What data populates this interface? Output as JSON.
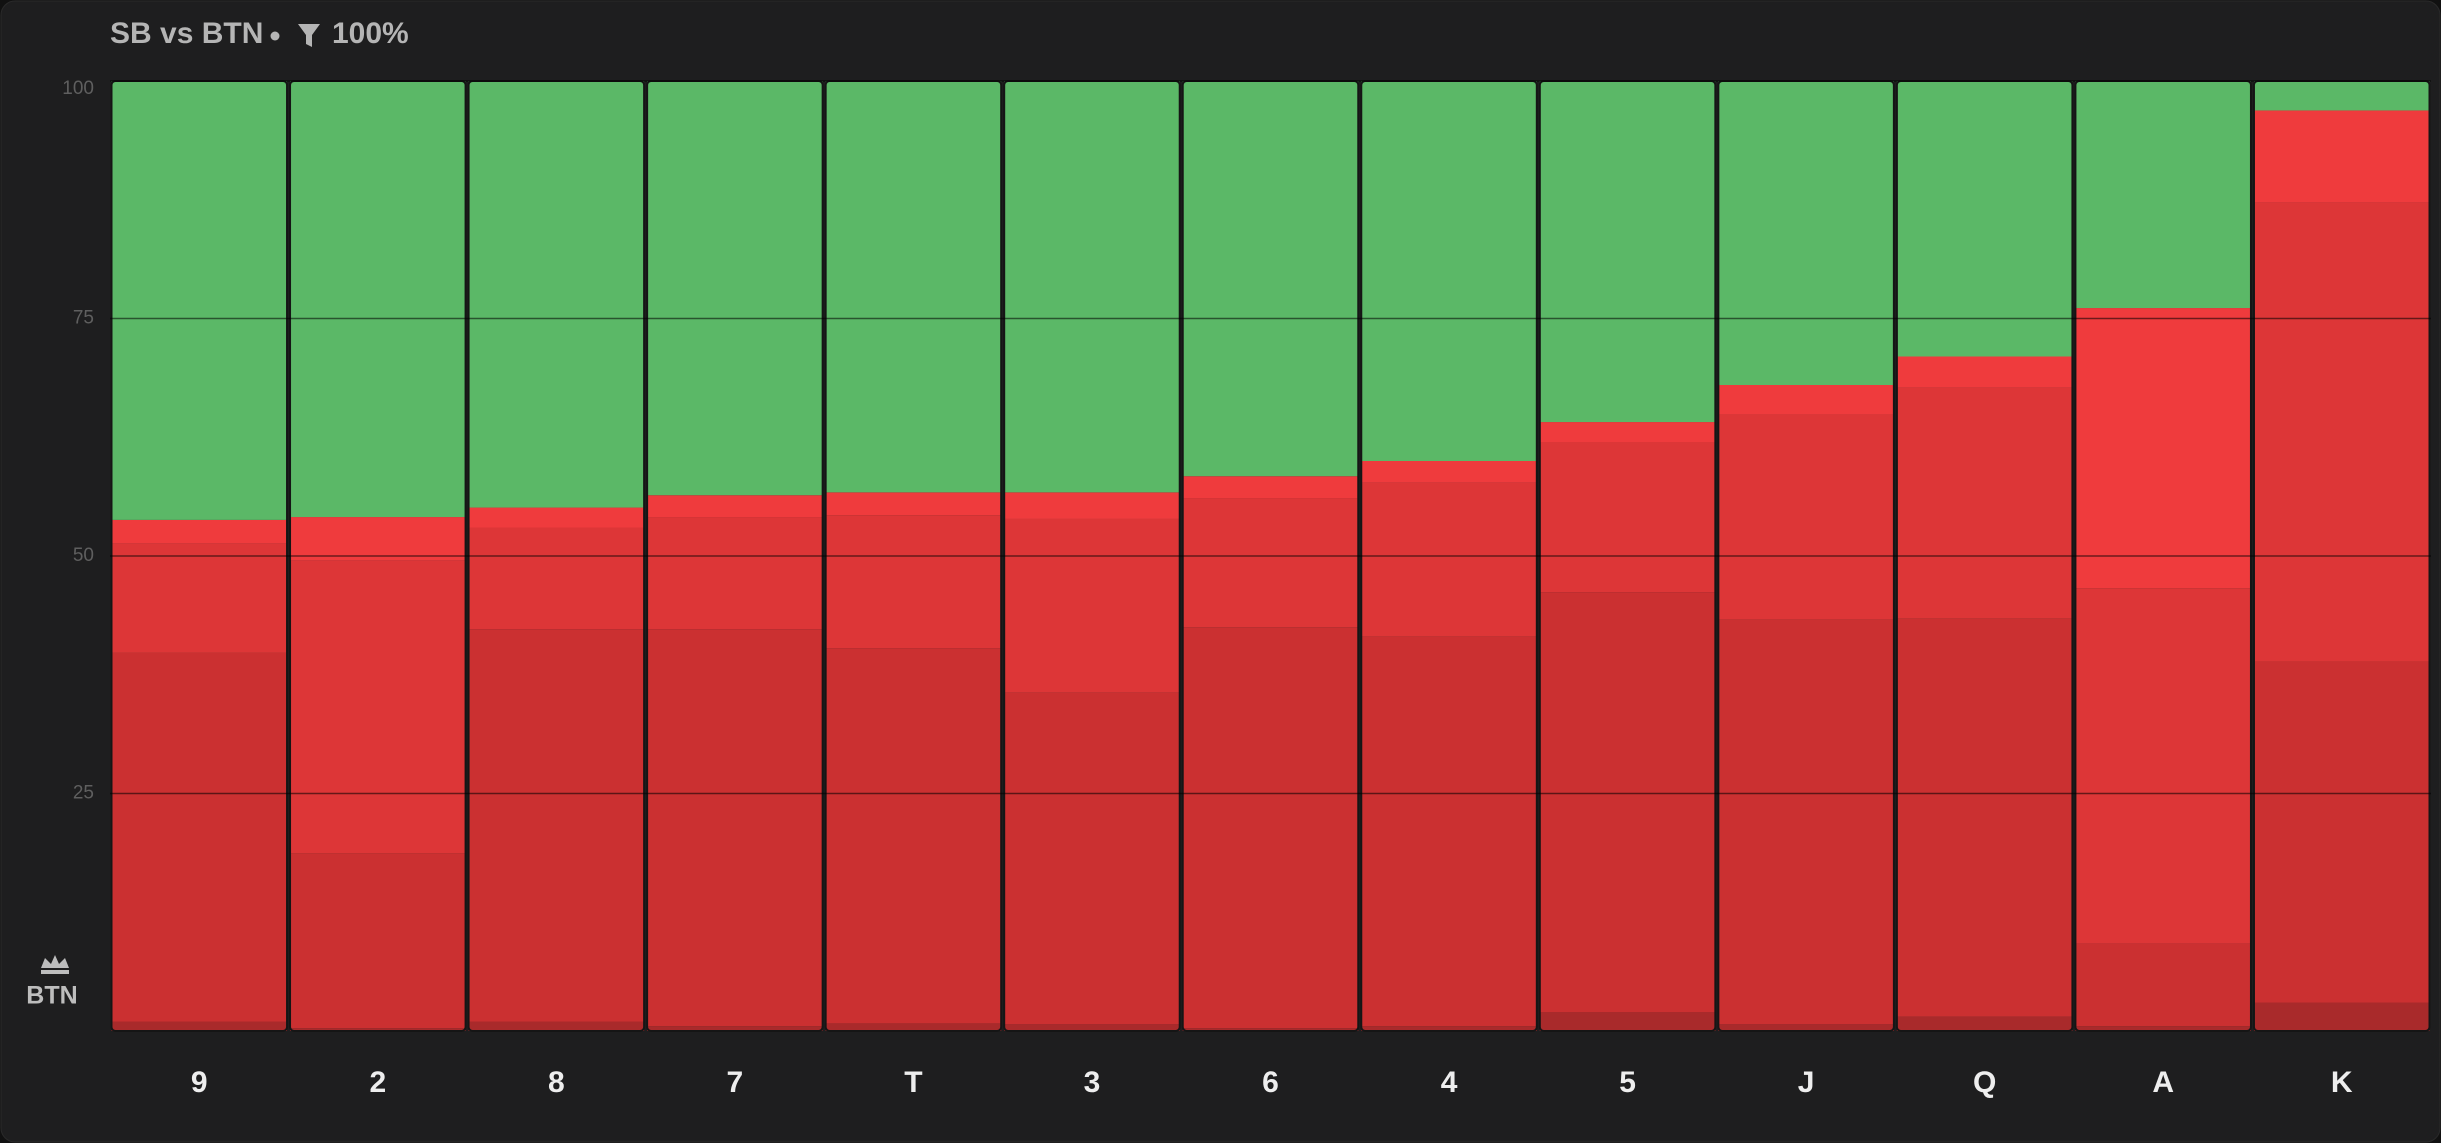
{
  "header": {
    "title": "SB vs BTN",
    "filter": "100%"
  },
  "side_label": "BTN",
  "chart_data": {
    "type": "stacked-bar",
    "categories": [
      "9",
      "2",
      "8",
      "7",
      "T",
      "3",
      "6",
      "4",
      "5",
      "J",
      "Q",
      "A",
      "K"
    ],
    "ylim": [
      0,
      100
    ],
    "yticks": [
      25,
      50,
      75,
      100
    ],
    "grid": true,
    "series": [
      {
        "color": "#a92a2b",
        "values": [
          1,
          0.3,
          1,
          0.5,
          0.8,
          0.7,
          0.3,
          0.5,
          2,
          0.7,
          1.5,
          0.5,
          3
        ]
      },
      {
        "color": "#cb3031",
        "values": [
          38.8,
          18.4,
          41.3,
          41.8,
          39.5,
          34.9,
          42.2,
          41,
          44.2,
          42.6,
          41.9,
          8.7,
          35.9
        ]
      },
      {
        "color": "#dd3637",
        "values": [
          11.5,
          30.8,
          10.7,
          11.8,
          14,
          18.3,
          13.6,
          16.2,
          15.8,
          21.6,
          24.3,
          37.4,
          48.3
        ]
      },
      {
        "color": "#ef3b3d",
        "values": [
          2.5,
          4.6,
          2.1,
          2.3,
          2.4,
          2.8,
          2.3,
          2.3,
          2.1,
          3.1,
          3.3,
          29.5,
          9.7
        ]
      },
      {
        "color": "#5bb867",
        "values": [
          46.2,
          45.9,
          44.9,
          43.6,
          43.3,
          43.3,
          41.6,
          40,
          35.9,
          32,
          29,
          23.9,
          3.1
        ]
      }
    ]
  }
}
